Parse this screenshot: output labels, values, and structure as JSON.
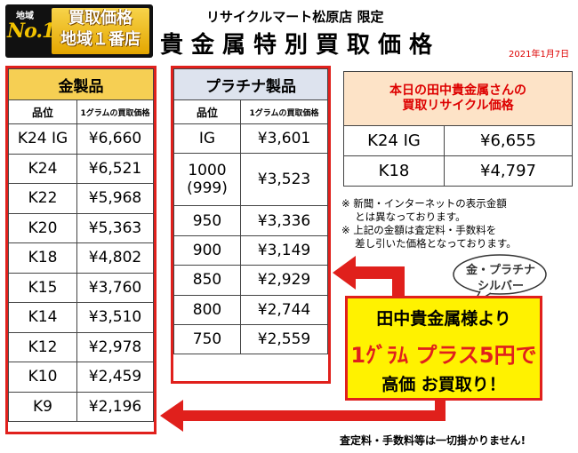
{
  "badge": {
    "area": "地域",
    "no1": "No.1",
    "line1": "買取価格",
    "line2": "地域１番店"
  },
  "header": {
    "store": "リサイクルマート松原店 限定",
    "title": "貴金属特別買取価格",
    "date": "2021年1月7日"
  },
  "gold": {
    "title": "金製品",
    "col_grade": "品位",
    "col_price": "1グラムの買取価格",
    "rows": [
      {
        "grade": "K24 IG",
        "price": "¥6,660"
      },
      {
        "grade": "K24",
        "price": "¥6,521"
      },
      {
        "grade": "K22",
        "price": "¥5,968"
      },
      {
        "grade": "K20",
        "price": "¥5,363"
      },
      {
        "grade": "K18",
        "price": "¥4,802"
      },
      {
        "grade": "K15",
        "price": "¥3,760"
      },
      {
        "grade": "K14",
        "price": "¥3,510"
      },
      {
        "grade": "K12",
        "price": "¥2,978"
      },
      {
        "grade": "K10",
        "price": "¥2,459"
      },
      {
        "grade": "K9",
        "price": "¥2,196"
      }
    ]
  },
  "platinum": {
    "title": "プラチナ製品",
    "col_grade": "品位",
    "col_price": "1グラムの買取価格",
    "rows": [
      {
        "grade": "IG",
        "price": "¥3,601"
      },
      {
        "grade": "1000\n(999)",
        "price": "¥3,523"
      },
      {
        "grade": "950",
        "price": "¥3,336"
      },
      {
        "grade": "900",
        "price": "¥3,149"
      },
      {
        "grade": "850",
        "price": "¥2,929"
      },
      {
        "grade": "800",
        "price": "¥2,744"
      },
      {
        "grade": "750",
        "price": "¥2,559"
      }
    ]
  },
  "today": {
    "title1": "本日の田中貴金属さんの",
    "title2": "買取リサイクル価格",
    "rows": [
      {
        "grade": "K24 IG",
        "price": "¥6,655"
      },
      {
        "grade": "K18",
        "price": "¥4,797"
      }
    ]
  },
  "notes": [
    "※ 新聞・インターネットの表示金額",
    "　 とは異なっております。",
    "※ 上記の金額は査定料・手数料を",
    "　 差し引いた価格となっております。"
  ],
  "bubble": {
    "line1": "金・プラチナ",
    "line2": "シルバー"
  },
  "callout": {
    "line1": "田中貴金属様より",
    "line2": "1ｸﾞﾗﾑ プラス5円で",
    "line3": "高価 お買取り！"
  },
  "footer": "査定料・手数料等は一切掛かりません!",
  "colors": {
    "red": "#e0201c",
    "gold_header": "#f6cf53",
    "plat_header": "#dde3ee",
    "yellow": "#fff200"
  }
}
